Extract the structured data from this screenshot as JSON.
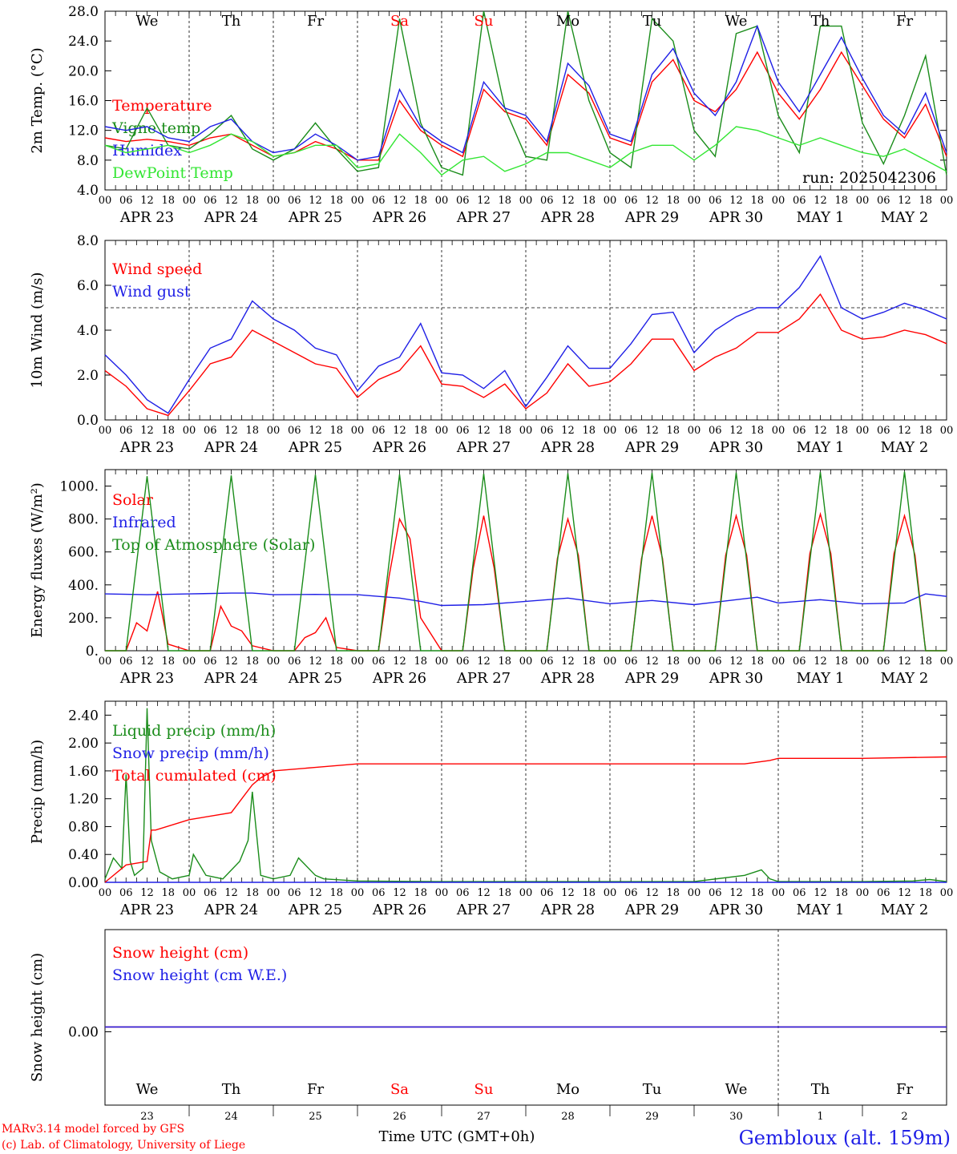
{
  "footer": {
    "model_line": "MARv3.14 model forced by GFS",
    "copyright_line": "(c) Lab. of Climatology, University of Liege",
    "time_label": "Time UTC (GMT+0h)",
    "station": "Gembloux (alt. 159m)",
    "color_red": "#ff0000",
    "color_blue": "#1f1fe6"
  },
  "x_axis": {
    "hour_labels": [
      "00",
      "06",
      "12",
      "18"
    ],
    "dates": [
      "APR 23",
      "APR 24",
      "APR 25",
      "APR 26",
      "APR 27",
      "APR 28",
      "APR 29",
      "APR 30",
      "MAY  1",
      "MAY  2"
    ],
    "day_names": [
      "We",
      "Th",
      "Fr",
      "Sa",
      "Su",
      "Mo",
      "Tu",
      "We",
      "Th",
      "Fr"
    ],
    "day_colors": [
      "#000000",
      "#000000",
      "#000000",
      "#ff0000",
      "#ff0000",
      "#000000",
      "#000000",
      "#000000",
      "#000000",
      "#000000"
    ],
    "day_numbers": [
      "23",
      "24",
      "25",
      "26",
      "27",
      "28",
      "29",
      "30",
      "1",
      "2"
    ],
    "range_days": [
      0,
      10
    ]
  },
  "run_label": "run: 2025042306",
  "chart_data": [
    {
      "type": "line",
      "ylabel": "2m Temp. (°C)",
      "ylim": [
        4,
        28
      ],
      "yticks": [
        "4.0",
        "8.0",
        "12.0",
        "16.0",
        "20.0",
        "24.0",
        "28.0"
      ],
      "series": [
        {
          "name": "Temperature",
          "color": "#ff0000",
          "x": [
            0,
            0.25,
            0.5,
            0.75,
            1,
            1.25,
            1.5,
            1.75,
            2,
            2.25,
            2.5,
            2.75,
            3,
            3.25,
            3.5,
            3.75,
            4,
            4.25,
            4.5,
            4.75,
            5,
            5.25,
            5.5,
            5.75,
            6,
            6.25,
            6.5,
            6.75,
            7,
            7.25,
            7.5,
            7.75,
            8,
            8.25,
            8.5,
            8.75,
            9,
            9.25,
            9.5,
            9.75,
            10
          ],
          "y": [
            11,
            10.5,
            10.8,
            10.5,
            10,
            11,
            11.5,
            10,
            8.5,
            9,
            10.5,
            9.5,
            8,
            8,
            16,
            12,
            10,
            8.5,
            17.5,
            14.5,
            13.5,
            10,
            19.5,
            17,
            11,
            10,
            18.5,
            21.5,
            16,
            14.5,
            17.5,
            22.5,
            17,
            13.5,
            17.5,
            22.5,
            18,
            13.5,
            11,
            15.5,
            8.5
          ]
        },
        {
          "name": "Vigne temp",
          "color": "#1a8c1a",
          "x": [
            0,
            0.25,
            0.5,
            0.75,
            1,
            1.25,
            1.5,
            1.75,
            2,
            2.25,
            2.5,
            2.75,
            3,
            3.25,
            3.5,
            3.75,
            4,
            4.25,
            4.5,
            4.75,
            5,
            5.25,
            5.5,
            5.75,
            6,
            6.25,
            6.5,
            6.75,
            7,
            7.25,
            7.5,
            7.75,
            8,
            8.25,
            8.5,
            8.75,
            9,
            9.25,
            9.5,
            9.75,
            10
          ],
          "y": [
            10,
            9.5,
            15,
            10,
            9.5,
            11.5,
            14,
            9.5,
            8,
            9.5,
            13,
            9.5,
            6.5,
            7,
            27,
            13,
            7,
            6,
            28,
            15,
            8.5,
            8,
            28,
            16,
            9,
            7,
            27,
            24,
            12,
            8.5,
            25,
            26,
            14,
            9,
            26,
            26,
            13,
            7.5,
            14,
            22,
            6
          ]
        },
        {
          "name": "Humidex",
          "color": "#1f1fe6",
          "x": [
            0,
            0.25,
            0.5,
            0.75,
            1,
            1.25,
            1.5,
            1.75,
            2,
            2.25,
            2.5,
            2.75,
            3,
            3.25,
            3.5,
            3.75,
            4,
            4.25,
            4.5,
            4.75,
            5,
            5.25,
            5.5,
            5.75,
            6,
            6.25,
            6.5,
            6.75,
            7,
            7.25,
            7.5,
            7.75,
            8,
            8.25,
            8.5,
            8.75,
            9,
            9.25,
            9.5,
            9.75,
            10
          ],
          "y": [
            12.5,
            12,
            12.5,
            11,
            10.5,
            12.5,
            13.5,
            10.5,
            9,
            9.5,
            11.5,
            10,
            8,
            8.5,
            17.5,
            12.5,
            10.5,
            9,
            18.5,
            15,
            14,
            10.5,
            21,
            18,
            11.5,
            10.5,
            19.5,
            23,
            17,
            14,
            18.5,
            26,
            18.5,
            14.5,
            19.5,
            24.5,
            19,
            14,
            11.5,
            17,
            9
          ]
        },
        {
          "name": "DewPoint Temp",
          "color": "#33e633",
          "x": [
            0,
            0.25,
            0.5,
            0.75,
            1,
            1.25,
            1.5,
            1.75,
            2,
            2.25,
            2.5,
            2.75,
            3,
            3.25,
            3.5,
            3.75,
            4,
            4.25,
            4.5,
            4.75,
            5,
            5.25,
            5.5,
            5.75,
            6,
            6.25,
            6.5,
            6.75,
            7,
            7.25,
            7.5,
            7.75,
            8,
            8.25,
            8.5,
            8.75,
            9,
            9.25,
            9.5,
            9.75,
            10
          ],
          "y": [
            10,
            9,
            9.5,
            10,
            9,
            10,
            11.5,
            10.5,
            8.5,
            9,
            10,
            10,
            7,
            7.5,
            11.5,
            9,
            6,
            8,
            8.5,
            6.5,
            7.5,
            9,
            9,
            8,
            7,
            9,
            10,
            10,
            8,
            10,
            12.5,
            12,
            11,
            10,
            11,
            10,
            9,
            8.5,
            9.5,
            8,
            6.5
          ]
        }
      ]
    },
    {
      "type": "line",
      "ylabel": "10m Wind (m/s)",
      "ylim": [
        0,
        8
      ],
      "yticks": [
        "0.0",
        "2.0",
        "4.0",
        "6.0",
        "8.0"
      ],
      "reference_line": 5,
      "series": [
        {
          "name": "Wind speed",
          "color": "#ff0000",
          "x": [
            0,
            0.25,
            0.5,
            0.75,
            1,
            1.25,
            1.5,
            1.75,
            2,
            2.25,
            2.5,
            2.75,
            3,
            3.25,
            3.5,
            3.75,
            4,
            4.25,
            4.5,
            4.75,
            5,
            5.25,
            5.5,
            5.75,
            6,
            6.25,
            6.5,
            6.75,
            7,
            7.25,
            7.5,
            7.75,
            8,
            8.25,
            8.5,
            8.75,
            9,
            9.25,
            9.5,
            9.75,
            10
          ],
          "y": [
            2.2,
            1.5,
            0.5,
            0.2,
            1.3,
            2.5,
            2.8,
            4.0,
            3.5,
            3.0,
            2.5,
            2.3,
            1.0,
            1.8,
            2.2,
            3.3,
            1.6,
            1.5,
            1.0,
            1.6,
            0.5,
            1.2,
            2.5,
            1.5,
            1.7,
            2.5,
            3.6,
            3.6,
            2.2,
            2.8,
            3.2,
            3.9,
            3.9,
            4.5,
            5.6,
            4.0,
            3.6,
            3.7,
            4.0,
            3.8,
            3.4
          ]
        },
        {
          "name": "Wind gust",
          "color": "#1f1fe6",
          "x": [
            0,
            0.25,
            0.5,
            0.75,
            1,
            1.25,
            1.5,
            1.75,
            2,
            2.25,
            2.5,
            2.75,
            3,
            3.25,
            3.5,
            3.75,
            4,
            4.25,
            4.5,
            4.75,
            5,
            5.25,
            5.5,
            5.75,
            6,
            6.25,
            6.5,
            6.75,
            7,
            7.25,
            7.5,
            7.75,
            8,
            8.25,
            8.5,
            8.75,
            9,
            9.25,
            9.5,
            9.75,
            10
          ],
          "y": [
            2.9,
            2.0,
            0.9,
            0.3,
            1.8,
            3.2,
            3.6,
            5.3,
            4.5,
            4.0,
            3.2,
            2.9,
            1.3,
            2.4,
            2.8,
            4.3,
            2.1,
            2.0,
            1.4,
            2.2,
            0.6,
            1.9,
            3.3,
            2.3,
            2.3,
            3.4,
            4.7,
            4.8,
            3.0,
            4.0,
            4.6,
            5.0,
            5.0,
            5.9,
            7.3,
            5.0,
            4.5,
            4.8,
            5.2,
            4.9,
            4.5
          ]
        }
      ]
    },
    {
      "type": "line",
      "ylabel": "Energy fluxes (W/m²)",
      "ylim": [
        0,
        1100
      ],
      "yticks": [
        "0.",
        "200.",
        "400.",
        "600.",
        "800.",
        "1000."
      ],
      "series": [
        {
          "name": "Solar",
          "color": "#ff0000",
          "x": [
            0,
            0.25,
            0.375,
            0.5,
            0.625,
            0.75,
            1,
            1.25,
            1.375,
            1.5,
            1.625,
            1.75,
            2,
            2.25,
            2.375,
            2.5,
            2.625,
            2.75,
            3,
            3.25,
            3.375,
            3.5,
            3.625,
            3.75,
            4,
            4.25,
            4.375,
            4.5,
            4.625,
            4.75,
            5,
            5.25,
            5.375,
            5.5,
            5.625,
            5.75,
            6,
            6.25,
            6.375,
            6.5,
            6.625,
            6.75,
            7,
            7.25,
            7.375,
            7.5,
            7.625,
            7.75,
            8,
            8.25,
            8.375,
            8.5,
            8.625,
            8.75,
            9,
            9.25,
            9.375,
            9.5,
            9.625,
            9.75,
            10
          ],
          "y": [
            0,
            0,
            170,
            120,
            360,
            40,
            0,
            0,
            270,
            150,
            120,
            30,
            0,
            0,
            80,
            110,
            200,
            20,
            0,
            0,
            450,
            800,
            680,
            200,
            0,
            0,
            500,
            820,
            500,
            0,
            0,
            0,
            560,
            800,
            580,
            0,
            0,
            0,
            560,
            820,
            560,
            0,
            0,
            0,
            580,
            820,
            580,
            0,
            0,
            0,
            590,
            830,
            590,
            0,
            0,
            0,
            590,
            820,
            580,
            0,
            0
          ]
        },
        {
          "name": "Infrared",
          "color": "#1f1fe6",
          "x": [
            0,
            0.5,
            1,
            1.5,
            1.75,
            2,
            2.5,
            2.75,
            3,
            3.5,
            3.75,
            4,
            4.5,
            5,
            5.5,
            6,
            6.5,
            7,
            7.5,
            7.75,
            8,
            8.5,
            9,
            9.5,
            9.75,
            10
          ],
          "y": [
            345,
            340,
            345,
            350,
            350,
            340,
            342,
            340,
            340,
            320,
            300,
            275,
            280,
            300,
            320,
            285,
            305,
            280,
            310,
            325,
            290,
            310,
            285,
            290,
            345,
            330
          ]
        },
        {
          "name": "Top of Atmosphere (Solar)",
          "color": "#1a8c1a",
          "x": [
            0,
            0.25,
            0.5,
            0.75,
            1,
            1.25,
            1.5,
            1.75,
            2,
            2.25,
            2.5,
            2.75,
            3,
            3.25,
            3.5,
            3.75,
            4,
            4.25,
            4.5,
            4.75,
            5,
            5.25,
            5.5,
            5.75,
            6,
            6.25,
            6.5,
            6.75,
            7,
            7.25,
            7.5,
            7.75,
            8,
            8.25,
            8.5,
            8.75,
            9,
            9.25,
            9.5,
            9.75,
            10
          ],
          "y": [
            0,
            0,
            1060,
            0,
            0,
            0,
            1065,
            0,
            0,
            0,
            1070,
            0,
            0,
            0,
            1072,
            0,
            0,
            0,
            1075,
            0,
            0,
            0,
            1078,
            0,
            0,
            0,
            1080,
            0,
            0,
            0,
            1082,
            0,
            0,
            0,
            1085,
            0,
            0,
            0,
            1088,
            0,
            0
          ]
        }
      ]
    },
    {
      "type": "line",
      "ylabel": "Precip (mm/h)",
      "ylim": [
        0,
        2.6
      ],
      "yticks": [
        "0.00",
        "0.40",
        "0.80",
        "1.20",
        "1.60",
        "2.00",
        "2.40"
      ],
      "series": [
        {
          "name": "Liquid precip (mm/h)",
          "color": "#1a8c1a",
          "x": [
            0,
            0.1,
            0.2,
            0.25,
            0.3,
            0.35,
            0.45,
            0.5,
            0.55,
            0.65,
            0.8,
            1,
            1.05,
            1.2,
            1.4,
            1.6,
            1.7,
            1.75,
            1.85,
            2,
            2.2,
            2.3,
            2.5,
            2.6,
            3,
            4,
            5,
            7,
            7.6,
            7.8,
            7.9,
            8,
            9,
            9.6,
            9.8,
            10
          ],
          "y": [
            0.05,
            0.35,
            0.2,
            1.55,
            0.3,
            0.1,
            0.2,
            2.5,
            0.6,
            0.15,
            0.05,
            0.1,
            0.4,
            0.1,
            0.05,
            0.3,
            0.6,
            1.3,
            0.1,
            0.05,
            0.1,
            0.35,
            0.1,
            0.05,
            0.02,
            0.01,
            0.01,
            0.01,
            0.1,
            0.18,
            0.05,
            0.01,
            0.01,
            0.02,
            0.04,
            0.01
          ]
        },
        {
          "name": "Snow precip (mm/h)",
          "color": "#1f1fe6",
          "x": [
            0,
            10
          ],
          "y": [
            0,
            0
          ]
        },
        {
          "name": "Total cumulated (cm)",
          "color": "#ff0000",
          "x": [
            0,
            0.25,
            0.5,
            0.55,
            0.6,
            1,
            1.5,
            1.75,
            1.85,
            2,
            2.5,
            3,
            5,
            7.6,
            7.9,
            8,
            9,
            10
          ],
          "y": [
            0,
            0.25,
            0.3,
            0.75,
            0.75,
            0.9,
            1.0,
            1.4,
            1.5,
            1.6,
            1.65,
            1.7,
            1.7,
            1.7,
            1.75,
            1.78,
            1.78,
            1.8
          ]
        }
      ]
    },
    {
      "type": "line",
      "ylabel": "Snow height (cm)",
      "yticks": [
        "0.00"
      ],
      "series": [
        {
          "name": "Snow height (cm)",
          "color": "#ff0000",
          "x": [
            0,
            10
          ],
          "y": [
            0,
            0
          ]
        },
        {
          "name": "Snow height (cm W.E.)",
          "color": "#1f1fe6",
          "x": [
            0,
            10
          ],
          "y": [
            0,
            0
          ]
        }
      ]
    }
  ]
}
